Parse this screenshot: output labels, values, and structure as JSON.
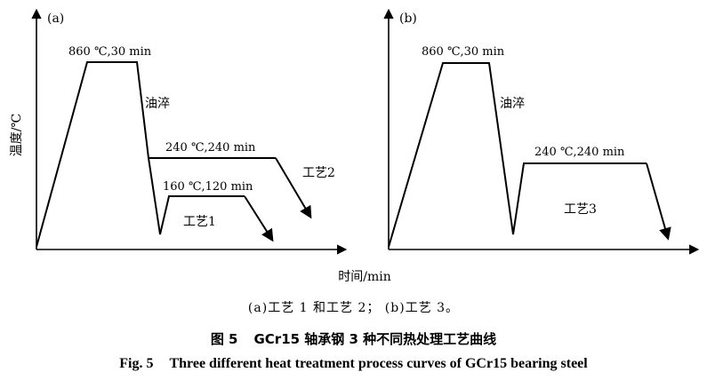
{
  "figure": {
    "number_cn": "图 5",
    "title_cn": "GCr15 轴承钢 3 种不同热处理工艺曲线",
    "number_en": "Fig. 5",
    "title_en": "Three different heat treatment process curves of GCr15 bearing steel",
    "subcaption": "(a)工艺 1 和工艺 2；  (b)工艺 3。"
  },
  "axes": {
    "y_label": "温度/℃",
    "x_label": "时间/min"
  },
  "panel_a": {
    "tag": "(a)",
    "austenitize": "860 ℃,30 min",
    "quench": "油淬",
    "temper_high": "240 ℃,240 min",
    "temper_low": "160 ℃,120 min",
    "process_high": "工艺2",
    "process_low": "工艺1"
  },
  "panel_b": {
    "tag": "(b)",
    "austenitize": "860 ℃,30 min",
    "quench": "油淬",
    "temper": "240 ℃,240 min",
    "process": "工艺3"
  }
}
